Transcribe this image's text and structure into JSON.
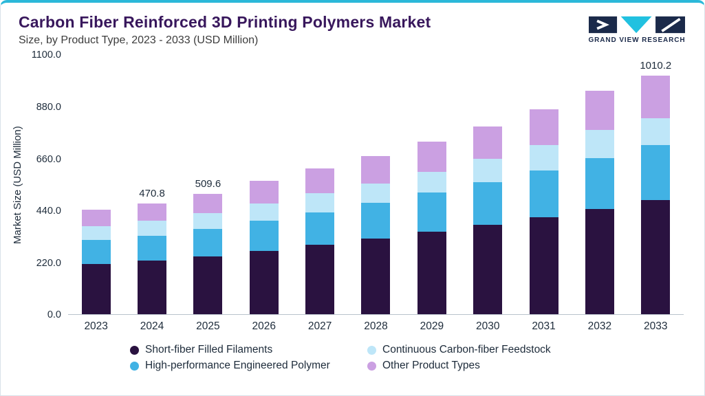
{
  "header": {
    "title": "Carbon Fiber Reinforced 3D Printing Polymers Market",
    "subtitle": "Size, by Product Type, 2023 - 2033 (USD Million)",
    "logo_text": "GRAND VIEW RESEARCH"
  },
  "colors": {
    "accent_top": "#2bb8d9",
    "title": "#38175c",
    "axis_text": "#1d2b3a",
    "logo_navy": "#1b2a4a",
    "logo_teal": "#21c1e0"
  },
  "chart_data": {
    "type": "bar",
    "stacked": true,
    "title": "Carbon Fiber Reinforced 3D Printing Polymers Market Size, by Product Type, 2023 - 2033 (USD Million)",
    "xlabel": "",
    "ylabel": "Market Size (USD Million)",
    "ylim": [
      0,
      1100
    ],
    "yticks": [
      0,
      220,
      440,
      660,
      880,
      1100
    ],
    "grid": false,
    "legend_position": "bottom",
    "categories": [
      "2023",
      "2024",
      "2025",
      "2026",
      "2027",
      "2028",
      "2029",
      "2030",
      "2031",
      "2032",
      "2033"
    ],
    "series": [
      {
        "name": "Short-fiber Filled Filaments",
        "color": "#2a1240",
        "values": [
          215,
          228,
          247,
          270,
          295,
          320,
          350,
          380,
          412,
          447,
          483
        ]
      },
      {
        "name": "High-performance Engineered Polymer",
        "color": "#41b2e4",
        "values": [
          100,
          106,
          115,
          126,
          138,
          152,
          165,
          180,
          198,
          216,
          235
        ]
      },
      {
        "name": "Continuous Carbon-fiber Feedstock",
        "color": "#bee6f8",
        "values": [
          58,
          62,
          67,
          73,
          80,
          83,
          90,
          98,
          107,
          117,
          114
        ]
      },
      {
        "name": "Other Product Types",
        "color": "#cba0e2",
        "values": [
          70,
          74.8,
          80.6,
          96,
          105,
          117,
          126,
          137,
          151,
          168,
          178.2
        ]
      }
    ],
    "totals": [
      443,
      470.8,
      509.6,
      565,
      618,
      672,
      731,
      795,
      868,
      948,
      1010.2
    ],
    "totals_labels": [
      "",
      "470.8",
      "509.6",
      "",
      "",
      "",
      "",
      "",
      "",
      "",
      "1010.2"
    ]
  },
  "legend": {
    "items": [
      {
        "label": "Short-fiber Filled Filaments",
        "color": "#2a1240"
      },
      {
        "label": "Continuous Carbon-fiber Feedstock",
        "color": "#bee6f8"
      },
      {
        "label": "High-performance Engineered Polymer",
        "color": "#41b2e4"
      },
      {
        "label": "Other Product Types",
        "color": "#cba0e2"
      }
    ]
  }
}
